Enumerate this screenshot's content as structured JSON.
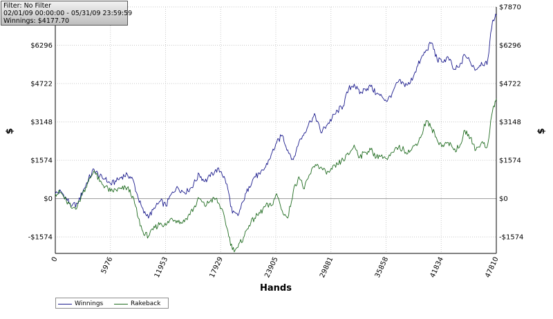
{
  "filter": {
    "line1": "Filter: No Filter",
    "line2": "02/01/09 00:00:00 - 05/31/09 23:59:59",
    "line3": "Winnings: $4177.70"
  },
  "chart_data": {
    "type": "line",
    "xlabel": "Hands",
    "ylabel": "$",
    "x_ticks": [
      0,
      5976,
      11953,
      17929,
      23905,
      29881,
      35858,
      41834,
      47810
    ],
    "y_ticks": [
      -1574,
      0,
      1574,
      3148,
      4722,
      6296,
      7870
    ],
    "y_tick_labels": [
      "-$1574",
      "$0",
      "$1574",
      "$3148",
      "$4722",
      "$6296",
      "$7870"
    ],
    "xlim": [
      0,
      47810
    ],
    "ylim": [
      -2250,
      7870
    ],
    "grid": true,
    "legend_position": "bottom-left",
    "series": [
      {
        "name": "Winnings",
        "color": "#1a1a8c",
        "x": [
          0,
          600,
          1200,
          1800,
          2400,
          3000,
          3600,
          4200,
          4800,
          5400,
          6000,
          6600,
          7200,
          7800,
          8400,
          9000,
          9600,
          10200,
          10800,
          11400,
          12000,
          12600,
          13200,
          13800,
          14400,
          15000,
          15600,
          16200,
          16800,
          17400,
          18000,
          18600,
          19200,
          19800,
          20400,
          21000,
          21600,
          22200,
          22800,
          23400,
          24000,
          24600,
          25200,
          25800,
          26400,
          27000,
          27600,
          28200,
          28800,
          29400,
          30000,
          30600,
          31200,
          31800,
          32400,
          33000,
          33600,
          34200,
          34800,
          35400,
          36000,
          36600,
          37200,
          37800,
          38400,
          39000,
          39600,
          40200,
          40800,
          41400,
          42000,
          42600,
          43200,
          43800,
          44400,
          45000,
          45600,
          46200,
          46800,
          47400,
          47810
        ],
        "y": [
          200,
          300,
          0,
          -300,
          -200,
          300,
          800,
          1200,
          900,
          800,
          600,
          700,
          900,
          1000,
          800,
          0,
          -600,
          -700,
          -400,
          -100,
          -300,
          200,
          500,
          300,
          300,
          600,
          1000,
          700,
          900,
          1200,
          1100,
          600,
          -600,
          -700,
          -100,
          500,
          900,
          1000,
          1300,
          1800,
          2300,
          2600,
          2000,
          1600,
          2300,
          2700,
          3200,
          3400,
          2700,
          3000,
          3300,
          3600,
          3800,
          4500,
          4700,
          4300,
          4500,
          4600,
          4300,
          4200,
          4000,
          4400,
          4800,
          4700,
          4700,
          5200,
          5700,
          6100,
          6400,
          5700,
          5600,
          5800,
          5300,
          5400,
          5900,
          5600,
          5300,
          5600,
          5500,
          7300,
          7500
        ]
      },
      {
        "name": "Rakeback",
        "color": "#1f6b1f",
        "x": [
          0,
          600,
          1200,
          1800,
          2400,
          3000,
          3600,
          4200,
          4800,
          5400,
          6000,
          6600,
          7200,
          7800,
          8400,
          9000,
          9600,
          10200,
          10800,
          11400,
          12000,
          12600,
          13200,
          13800,
          14400,
          15000,
          15600,
          16200,
          16800,
          17400,
          18000,
          18600,
          19200,
          19800,
          20400,
          21000,
          21600,
          22200,
          22800,
          23400,
          24000,
          24600,
          25200,
          25800,
          26400,
          27000,
          27600,
          28200,
          28800,
          29400,
          30000,
          30600,
          31200,
          31800,
          32400,
          33000,
          33600,
          34200,
          34800,
          35400,
          36000,
          36600,
          37200,
          37800,
          38400,
          39000,
          39600,
          40200,
          40800,
          41400,
          42000,
          42600,
          43200,
          43800,
          44400,
          45000,
          45600,
          46200,
          46800,
          47400,
          47810
        ],
        "y": [
          200,
          250,
          -100,
          -400,
          -300,
          250,
          700,
          1150,
          700,
          500,
          300,
          350,
          400,
          450,
          100,
          -800,
          -1500,
          -1500,
          -1200,
          -1000,
          -1100,
          -800,
          -900,
          -1000,
          -700,
          -400,
          0,
          -300,
          -100,
          0,
          -400,
          -1200,
          -2100,
          -2000,
          -1600,
          -1100,
          -800,
          -600,
          -300,
          -300,
          200,
          -500,
          -800,
          300,
          900,
          400,
          1000,
          1400,
          1300,
          1000,
          1200,
          1400,
          1600,
          1800,
          2200,
          1700,
          1900,
          2000,
          1700,
          1800,
          1600,
          1900,
          2100,
          2000,
          1900,
          2200,
          2500,
          3200,
          2900,
          2400,
          2200,
          2300,
          2000,
          2100,
          2800,
          2500,
          2000,
          2300,
          2100,
          3600,
          4100
        ]
      }
    ]
  }
}
